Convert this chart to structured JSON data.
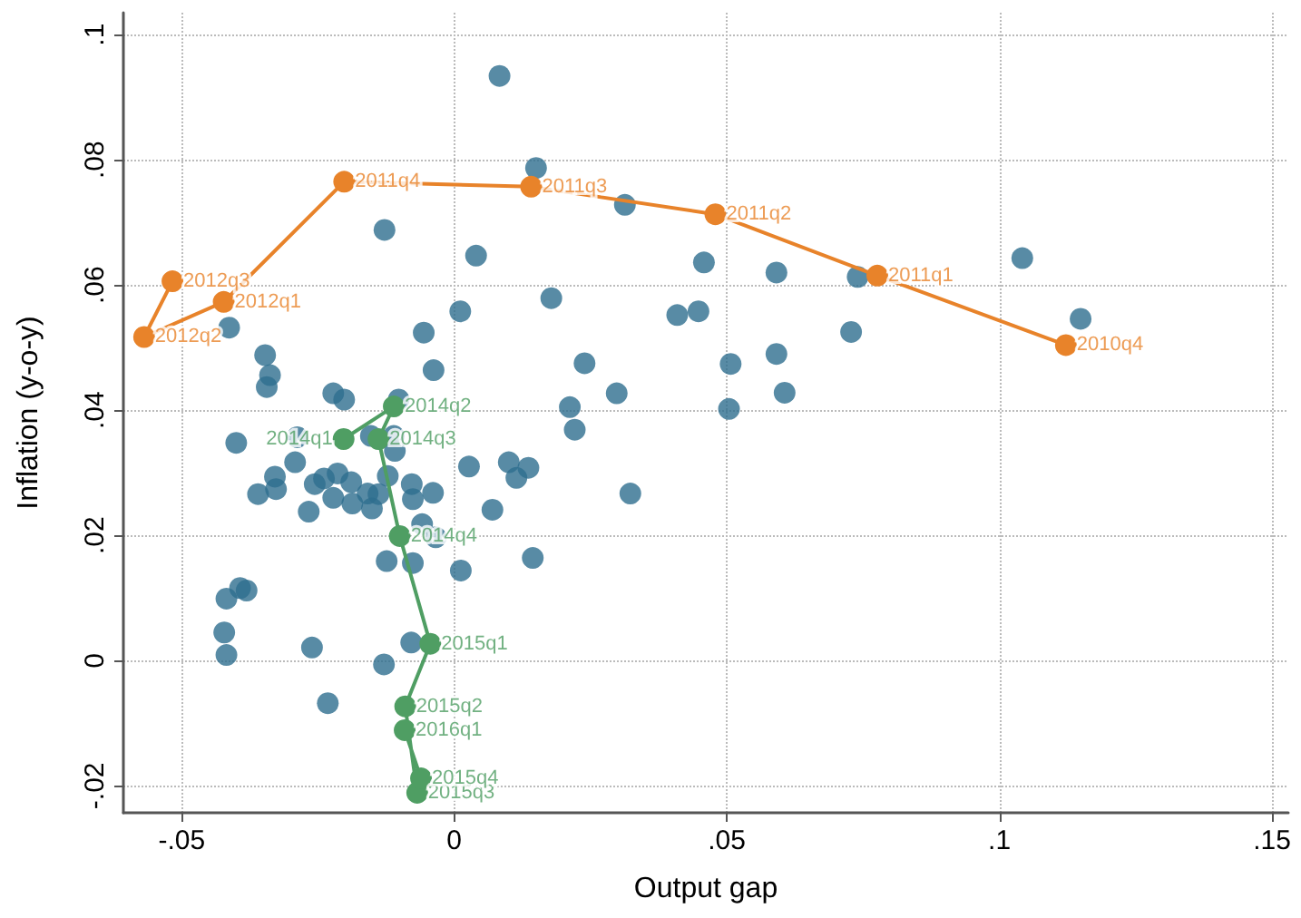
{
  "chart_data": {
    "type": "scatter",
    "xlabel": "Output gap",
    "ylabel": "Inflation (y-o-y)",
    "xlim": [
      -0.0607,
      0.153
    ],
    "ylim": [
      -0.0243,
      0.1035
    ],
    "xticks": [
      {
        "value": -0.05,
        "label": "-.05"
      },
      0,
      {
        "value": 0.05,
        "label": ".05"
      },
      {
        "value": 0.1,
        "label": ".1"
      },
      {
        "value": 0.15,
        "label": ".15"
      }
    ],
    "yticks": [
      {
        "value": -0.02,
        "label": "-.02"
      },
      0,
      {
        "value": 0.02,
        "label": ".02"
      },
      {
        "value": 0.04,
        "label": ".04"
      },
      {
        "value": 0.06,
        "label": ".06"
      },
      {
        "value": 0.08,
        "label": ".08"
      },
      {
        "value": 0.1,
        "label": ".1"
      }
    ],
    "grid": true,
    "marker": "circle",
    "series": [
      {
        "type": "scatter",
        "color": "#2e6e8e",
        "x": [
          0.0083,
          0.015,
          0.0313,
          -0.0128,
          0.004,
          0.0178,
          0.0409,
          0.0011,
          -0.0413,
          -0.0056,
          -0.0347,
          0.0239,
          -0.0038,
          -0.0338,
          -0.0344,
          0.0212,
          0.0298,
          -0.0222,
          -0.0202,
          -0.0102,
          0.0221,
          0.0458,
          0.0591,
          0.074,
          0.1042,
          0.1149,
          0.0448,
          0.0728,
          0.0507,
          0.0591,
          0.0606,
          0.0504,
          -0.04,
          -0.0288,
          -0.0292,
          -0.0329,
          -0.0327,
          -0.036,
          -0.0256,
          -0.0239,
          -0.0214,
          -0.0189,
          -0.0222,
          -0.0187,
          -0.0267,
          -0.0159,
          -0.0139,
          -0.0151,
          -0.0122,
          -0.0109,
          -0.0111,
          -0.0153,
          -0.0078,
          -0.0076,
          -0.0039,
          0.0027,
          0.01,
          0.0136,
          0.0114,
          0.007,
          0.0323,
          -0.0059,
          -0.0034,
          -0.0124,
          -0.0076,
          0.0012,
          0.0144,
          -0.0381,
          -0.0393,
          -0.0418,
          -0.0422,
          -0.0418,
          -0.0261,
          -0.0079,
          -0.0129,
          -0.0232
        ],
        "values": [
          0.0934,
          0.0787,
          0.0728,
          0.0688,
          0.0647,
          0.0579,
          0.0552,
          0.0558,
          0.0532,
          0.0524,
          0.0488,
          0.0475,
          0.0464,
          0.0456,
          0.0437,
          0.0405,
          0.0427,
          0.0427,
          0.0417,
          0.0417,
          0.0369,
          0.0636,
          0.062,
          0.0613,
          0.0643,
          0.0546,
          0.0558,
          0.0525,
          0.0474,
          0.049,
          0.0428,
          0.0402,
          0.0348,
          0.0357,
          0.0317,
          0.0294,
          0.0274,
          0.0266,
          0.0282,
          0.0291,
          0.0299,
          0.0285,
          0.026,
          0.0251,
          0.0238,
          0.0267,
          0.0266,
          0.0243,
          0.0295,
          0.0335,
          0.0359,
          0.0359,
          0.0282,
          0.0258,
          0.0268,
          0.031,
          0.0317,
          0.0308,
          0.0292,
          0.0241,
          0.0267,
          0.0218,
          0.0197,
          0.0159,
          0.0156,
          0.0144,
          0.0164,
          0.0112,
          0.0116,
          0.0099,
          0.0045,
          0.0009,
          0.0021,
          0.0029,
          -0.0006,
          -0.0068
        ]
      },
      {
        "type": "line",
        "color": "#e8832a",
        "x": [
          0.1122,
          0.0776,
          0.0479,
          0.0141,
          -0.0202,
          -0.0423,
          -0.0569,
          -0.0517
        ],
        "values": [
          0.0504,
          0.0615,
          0.0713,
          0.0757,
          0.0765,
          0.0573,
          0.0517,
          0.0606
        ]
      },
      {
        "type": "line",
        "color": "#4f9e63",
        "x": [
          -0.0203,
          -0.0111,
          -0.0139,
          -0.01,
          -0.0044,
          -0.009,
          -0.0068,
          -0.0061,
          -0.0091
        ],
        "values": [
          0.0354,
          0.0406,
          0.0354,
          0.0199,
          0.0027,
          -0.0073,
          -0.0211,
          -0.0188,
          -0.0111
        ]
      }
    ],
    "annotations": [
      {
        "text": "2010q4",
        "x": 0.1122,
        "y": 0.0504
      },
      {
        "text": "2011q1",
        "x": 0.0776,
        "y": 0.0615
      },
      {
        "text": "2011q2",
        "x": 0.0479,
        "y": 0.0713
      },
      {
        "text": "2011q3",
        "x": 0.0141,
        "y": 0.0757
      },
      {
        "text": "2011q4",
        "x": -0.0202,
        "y": 0.0765
      },
      {
        "text": "2012q1",
        "x": -0.0423,
        "y": 0.0573
      },
      {
        "text": "2012q2",
        "x": -0.0569,
        "y": 0.0517
      },
      {
        "text": "2012q3",
        "x": -0.0517,
        "y": 0.0606
      },
      {
        "text": "2014q1",
        "x": -0.0203,
        "y": 0.0354
      },
      {
        "text": "2014q2",
        "x": -0.0111,
        "y": 0.0406
      },
      {
        "text": "2014q3",
        "x": -0.0139,
        "y": 0.0354
      },
      {
        "text": "2014q4",
        "x": -0.01,
        "y": 0.0199
      },
      {
        "text": "2015q1",
        "x": -0.0044,
        "y": 0.0027
      },
      {
        "text": "2015q2",
        "x": -0.009,
        "y": -0.0073
      },
      {
        "text": "2015q3",
        "x": -0.0068,
        "y": -0.0211
      },
      {
        "text": "2015q4",
        "x": -0.0061,
        "y": -0.0188
      },
      {
        "text": "2016q1",
        "x": -0.0091,
        "y": -0.0111
      }
    ]
  }
}
